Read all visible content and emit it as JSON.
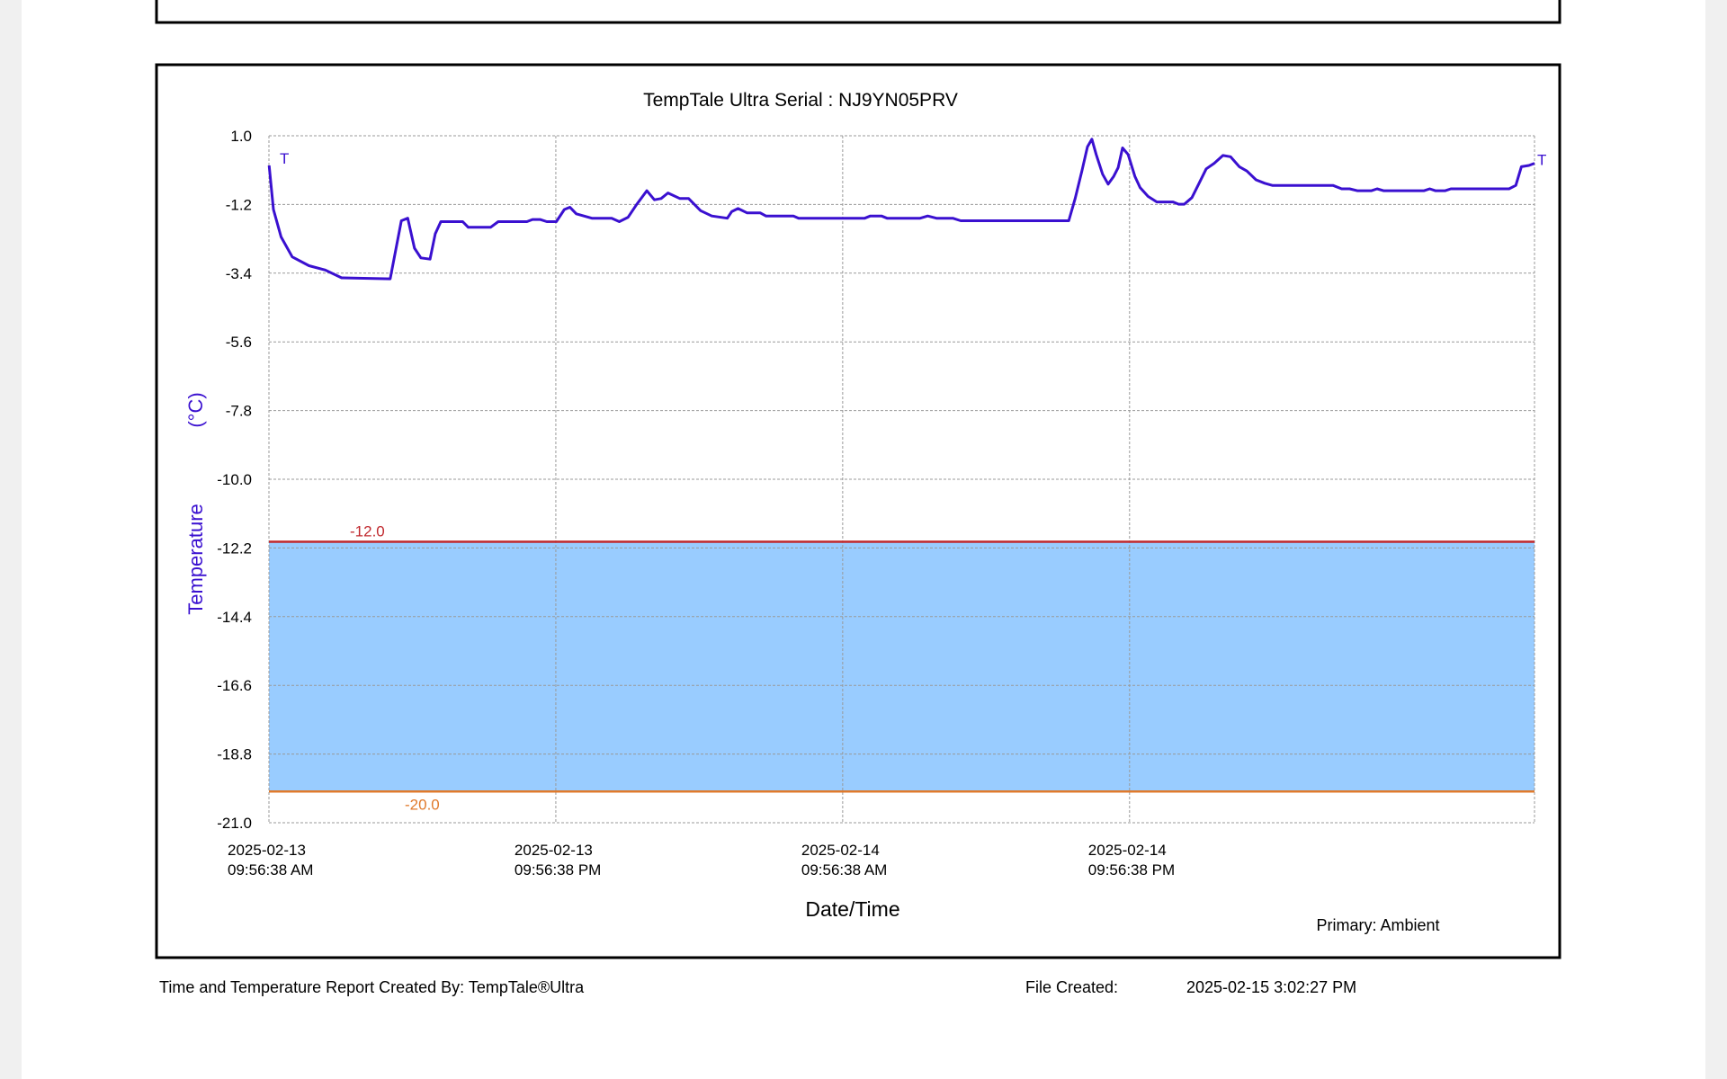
{
  "chart_data": {
    "type": "line",
    "title": "TempTale Ultra  Serial : NJ9YN05PRV",
    "y_label": "Temperature",
    "y_unit": "(°C)",
    "x_label": "Date/Time",
    "legend_label": "Primary: Ambient",
    "markers": {
      "start": "T",
      "end": "T"
    },
    "ylim": [
      -21.0,
      1.0
    ],
    "yticks": [
      {
        "value": 1.0,
        "label": "1.0"
      },
      {
        "value": -1.2,
        "label": "-1.2"
      },
      {
        "value": -3.4,
        "label": "-3.4"
      },
      {
        "value": -5.6,
        "label": "-5.6"
      },
      {
        "value": -7.8,
        "label": "-7.8"
      },
      {
        "value": -10.0,
        "label": "-10.0"
      },
      {
        "value": -12.2,
        "label": "-12.2"
      },
      {
        "value": -14.4,
        "label": "-14.4"
      },
      {
        "value": -16.6,
        "label": "-16.6"
      },
      {
        "value": -18.8,
        "label": "-18.8"
      },
      {
        "value": -21.0,
        "label": "-21.0"
      }
    ],
    "xlim": [
      "2025-02-13T09:56:38",
      "2025-02-15T14:53"
    ],
    "xticks": [
      {
        "value": "2025-02-13T09:56:38",
        "label": [
          "2025-02-13",
          "09:56:38 AM"
        ]
      },
      {
        "value": "2025-02-13T21:56:38",
        "label": [
          "2025-02-13",
          "09:56:38 PM"
        ]
      },
      {
        "value": "2025-02-14T09:56:38",
        "label": [
          "2025-02-14",
          "09:56:38 AM"
        ]
      },
      {
        "value": "2025-02-14T21:56:38",
        "label": [
          "2025-02-14",
          "09:56:38 PM"
        ]
      }
    ],
    "grid": true,
    "thresholds": [
      {
        "value": -12.0,
        "label": "-12.0",
        "color": "#c0282d"
      },
      {
        "value": -20.0,
        "label": "-20.0",
        "color": "#e07a2c"
      }
    ],
    "band_color": "#99ccff",
    "x": [
      "2025-02-13T09:57",
      "2025-02-13T10:08",
      "2025-02-13T10:27",
      "2025-02-13T10:55",
      "2025-02-13T11:37",
      "2025-02-13T12:18",
      "2025-02-13T12:59",
      "2025-02-13T15:01",
      "2025-02-13T15:29",
      "2025-02-13T15:45",
      "2025-02-13T16:02",
      "2025-02-13T16:18",
      "2025-02-13T16:41",
      "2025-02-13T16:54",
      "2025-02-13T17:08",
      "2025-02-13T18:03",
      "2025-02-13T18:17",
      "2025-02-13T19:13",
      "2025-02-13T19:32",
      "2025-02-13T20:44",
      "2025-02-13T20:58",
      "2025-02-13T21:17",
      "2025-02-13T21:34",
      "2025-02-13T21:58",
      "2025-02-13T22:18",
      "2025-02-13T22:32",
      "2025-02-13T22:48",
      "2025-02-13T23:27",
      "2025-02-14T00:17",
      "2025-02-14T00:36",
      "2025-02-14T00:58",
      "2025-02-14T01:20",
      "2025-02-14T01:45",
      "2025-02-14T02:04",
      "2025-02-14T02:21",
      "2025-02-14T02:38",
      "2025-02-14T03:08",
      "2025-02-14T03:30",
      "2025-02-14T04:00",
      "2025-02-14T04:28",
      "2025-02-14T05:07",
      "2025-02-14T05:18",
      "2025-02-14T05:34",
      "2025-02-14T05:57",
      "2025-02-14T06:30",
      "2025-02-14T06:44",
      "2025-02-14T07:53",
      "2025-02-14T08:06",
      "2025-02-14T10:52",
      "2025-02-14T11:06",
      "2025-02-14T11:34",
      "2025-02-14T11:48",
      "2025-02-14T13:11",
      "2025-02-14T13:30",
      "2025-02-14T13:52",
      "2025-02-14T14:33",
      "2025-02-14T14:53",
      "2025-02-14T19:24",
      "2025-02-14T19:40",
      "2025-02-14T19:57",
      "2025-02-14T20:11",
      "2025-02-14T20:22",
      "2025-02-14T20:33",
      "2025-02-14T20:49",
      "2025-02-14T21:03",
      "2025-02-14T21:17",
      "2025-02-14T21:28",
      "2025-02-14T21:39",
      "2025-02-14T21:53",
      "2025-02-14T22:10",
      "2025-02-14T22:23",
      "2025-02-14T22:43",
      "2025-02-14T23:05",
      "2025-02-14T23:46",
      "2025-02-15T00:00",
      "2025-02-15T00:14",
      "2025-02-15T00:33",
      "2025-02-15T00:50",
      "2025-02-15T01:09",
      "2025-02-15T01:29",
      "2025-02-15T01:51",
      "2025-02-15T02:10",
      "2025-02-15T02:32",
      "2025-02-15T02:51",
      "2025-02-15T03:14",
      "2025-02-15T03:36",
      "2025-02-15T03:55",
      "2025-02-15T06:27",
      "2025-02-15T06:49",
      "2025-02-15T07:09",
      "2025-02-15T07:28",
      "2025-02-15T08:04",
      "2025-02-15T08:18",
      "2025-02-15T08:34",
      "2025-02-15T10:16",
      "2025-02-15T10:30",
      "2025-02-15T10:44",
      "2025-02-15T11:09",
      "2025-02-15T11:23",
      "2025-02-15T13:49",
      "2025-02-15T14:06",
      "2025-02-15T14:20",
      "2025-02-15T14:39",
      "2025-02-15T14:53"
    ],
    "series": [
      {
        "color": "#3a10d0",
        "values": [
          0.05,
          -1.36,
          -2.24,
          -2.88,
          -3.16,
          -3.3,
          -3.55,
          -3.58,
          -1.72,
          -1.64,
          -2.6,
          -2.91,
          -2.95,
          -2.14,
          -1.75,
          -1.75,
          -1.93,
          -1.93,
          -1.75,
          -1.75,
          -1.68,
          -1.68,
          -1.75,
          -1.75,
          -1.36,
          -1.29,
          -1.5,
          -1.64,
          -1.64,
          -1.75,
          -1.61,
          -1.19,
          -0.76,
          -1.05,
          -1.01,
          -0.83,
          -1.01,
          -1.01,
          -1.4,
          -1.57,
          -1.64,
          -1.43,
          -1.33,
          -1.47,
          -1.47,
          -1.57,
          -1.57,
          -1.64,
          -1.64,
          -1.57,
          -1.57,
          -1.64,
          -1.64,
          -1.57,
          -1.64,
          -1.64,
          -1.72,
          -1.72,
          -1.01,
          -0.13,
          0.65,
          0.89,
          0.4,
          -0.23,
          -0.55,
          -0.3,
          -0.02,
          0.61,
          0.4,
          -0.3,
          -0.66,
          -0.94,
          -1.12,
          -1.12,
          -1.19,
          -1.19,
          -0.98,
          -0.55,
          -0.06,
          0.12,
          0.37,
          0.33,
          0.01,
          -0.13,
          -0.41,
          -0.52,
          -0.59,
          -0.59,
          -0.7,
          -0.7,
          -0.76,
          -0.76,
          -0.7,
          -0.76,
          -0.76,
          -0.7,
          -0.76,
          -0.76,
          -0.7,
          -0.7,
          -0.59,
          0.01,
          0.05,
          0.12
        ]
      }
    ]
  },
  "footer": {
    "created_by": "Time and Temperature Report Created By:  TempTale®Ultra",
    "file_created_label": "File Created:",
    "file_created": "2025-02-15  3:02:27 PM"
  }
}
